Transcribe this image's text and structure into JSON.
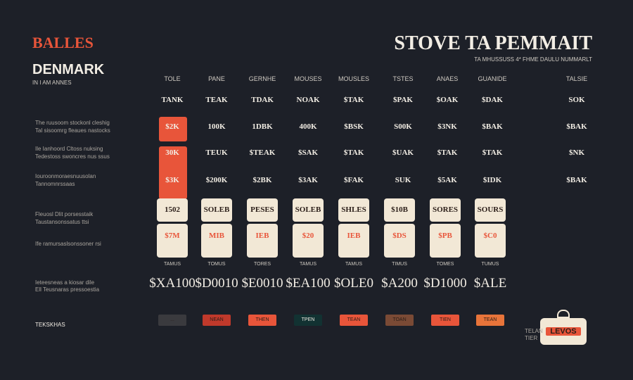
{
  "header": {
    "logo": "BALLES",
    "brand": "DENMARK",
    "tagline": "IN I AM ANNES",
    "title": "STOVE TA PEMMAIT",
    "subtitle": "TA MHUSSUSS 4* FHME DAULU NUMMARLT"
  },
  "table": {
    "columns": [
      "TOLE",
      "PANE",
      "GERNHE",
      "MOUSES",
      "MOUSLES",
      "TSTES",
      "ANAES",
      "GUANIDE",
      "TALSIE"
    ],
    "rows": [
      {
        "label": [],
        "cells": [
          "TANK",
          "TEAK",
          "TDAK",
          "NOAK",
          "$TAK",
          "$PAK",
          "$OAK",
          "$DAK",
          "SOK"
        ]
      },
      {
        "label": [
          "The ruusoom stockonl cleshig",
          "Tal sisoomrg fleaues nastocks"
        ],
        "cells": [
          "$2K",
          "100K",
          "1DBK",
          "400K",
          "$BSK",
          "S00K",
          "$3NK",
          "$BAK",
          "$BAK"
        ]
      },
      {
        "label": [
          "Ile Ianhoord Cltoss nuksing",
          "Tedestoss swoncres nus ssus"
        ],
        "cells": [
          "30K",
          "TEUK",
          "$TEAK",
          "$SAK",
          "$TAK",
          "$UAK",
          "$TAK",
          "$TAK",
          "$NK"
        ]
      },
      {
        "label": [
          "Iouroonmoraesnuusolan",
          "Tannomnrssaas"
        ],
        "cells": [
          "$3K",
          "$200K",
          "$2BK",
          "$3AK",
          "$FAK",
          "SUK",
          "$5AK",
          "$IDK",
          "$BAK"
        ]
      }
    ]
  },
  "cards": {
    "left_label": [
      "Fleuosl Dlit porsesstaik",
      "Taustansonssatus ttsi",
      "Ife ramursaslsonssoner rsi"
    ],
    "tops": [
      "1502",
      "SOLEB",
      "PESES",
      "SOLEB",
      "SHLES",
      "$10B",
      "SORES",
      "SOURS"
    ],
    "bottoms": [
      "$7M",
      "MIB",
      "IEB",
      "$20",
      "IEB",
      "$DS",
      "$PB",
      "$C0"
    ],
    "captions": [
      "TAMUS",
      "TOMUS",
      "TORES",
      "TAMUS",
      "TAMUS",
      "TIMUS",
      "TOMES",
      "TUMUS"
    ]
  },
  "prices": {
    "label": [
      "Ieteesneas a kiosar dile",
      "Ell Teusnaras pressoestia"
    ],
    "values": [
      "$XA100",
      "$D0010",
      "$E0010",
      "$EA100",
      "$OLE0",
      "$A200",
      "$D1000",
      "$ALE"
    ]
  },
  "buttons": [
    "...",
    "NEAN",
    "THEN",
    "TPEN",
    "TEAN",
    "TOAN",
    "TIEN",
    "TEAN"
  ],
  "footer": "TEKSKHAS",
  "badge": {
    "label": "LEVOS",
    "note": [
      "TELAN",
      "TIER"
    ]
  }
}
